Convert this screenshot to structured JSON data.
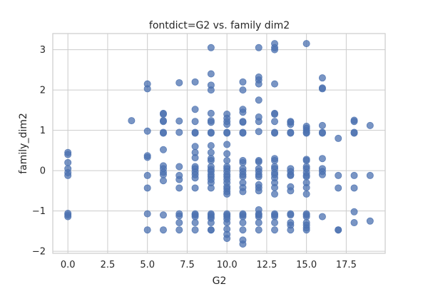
{
  "chart_data": {
    "type": "scatter",
    "title": "fontdict=G2 vs. family dim2",
    "xlabel": "G2",
    "ylabel": "family_dim2",
    "xlim": [
      -0.95,
      19.95
    ],
    "ylim": [
      -2.05,
      3.4
    ],
    "xticks": [
      0.0,
      2.5,
      5.0,
      7.5,
      10.0,
      12.5,
      15.0,
      17.5
    ],
    "xtick_labels": [
      "0.0",
      "2.5",
      "5.0",
      "7.5",
      "10.0",
      "12.5",
      "15.0",
      "17.5"
    ],
    "yticks": [
      -2,
      -1,
      0,
      1,
      2,
      3
    ],
    "ytick_labels": [
      "−2",
      "−1",
      "0",
      "1",
      "2",
      "3"
    ],
    "grid": true,
    "marker_color": "#4c72b0",
    "marker_alpha": 0.75,
    "points": [
      [
        0,
        0.45
      ],
      [
        0,
        0.4
      ],
      [
        0,
        0.2
      ],
      [
        0,
        0.05
      ],
      [
        0,
        -0.05
      ],
      [
        0,
        -0.12
      ],
      [
        0,
        -1.06
      ],
      [
        0,
        -1.1
      ],
      [
        0,
        -1.14
      ],
      [
        4,
        1.24
      ],
      [
        5,
        2.15
      ],
      [
        5,
        2.03
      ],
      [
        5,
        0.98
      ],
      [
        5,
        0.37
      ],
      [
        5,
        0.33
      ],
      [
        5,
        -0.12
      ],
      [
        5,
        -0.43
      ],
      [
        5,
        -1.07
      ],
      [
        5,
        -1.47
      ],
      [
        6,
        1.42
      ],
      [
        6,
        1.4
      ],
      [
        6,
        1.24
      ],
      [
        6,
        1.22
      ],
      [
        6,
        0.95
      ],
      [
        6,
        0.93
      ],
      [
        6,
        0.52
      ],
      [
        6,
        0.12
      ],
      [
        6,
        0.05
      ],
      [
        6,
        -0.04
      ],
      [
        6,
        -0.1
      ],
      [
        6,
        -0.25
      ],
      [
        6,
        -1.1
      ],
      [
        6,
        -1.47
      ],
      [
        7,
        2.18
      ],
      [
        7,
        1.23
      ],
      [
        7,
        0.95
      ],
      [
        7,
        0.1
      ],
      [
        7,
        -0.12
      ],
      [
        7,
        -0.22
      ],
      [
        7,
        -0.43
      ],
      [
        7,
        -1.07
      ],
      [
        7,
        -1.12
      ],
      [
        7,
        -1.29
      ],
      [
        7,
        -1.47
      ],
      [
        8,
        2.2
      ],
      [
        8,
        1.52
      ],
      [
        8,
        1.22
      ],
      [
        8,
        0.95
      ],
      [
        8,
        0.93
      ],
      [
        8,
        0.6
      ],
      [
        8,
        0.45
      ],
      [
        8,
        0.32
      ],
      [
        8,
        0.1
      ],
      [
        8,
        0.05
      ],
      [
        8,
        -0.03
      ],
      [
        8,
        -0.1
      ],
      [
        8,
        -0.18
      ],
      [
        8,
        -0.43
      ],
      [
        8,
        -1.07
      ],
      [
        8,
        -1.1
      ],
      [
        8,
        -1.14
      ],
      [
        8,
        -1.29
      ],
      [
        8,
        -1.47
      ],
      [
        9,
        3.05
      ],
      [
        9,
        2.4
      ],
      [
        9,
        2.12
      ],
      [
        9,
        2.0
      ],
      [
        9,
        1.42
      ],
      [
        9,
        1.24
      ],
      [
        9,
        1.2
      ],
      [
        9,
        0.95
      ],
      [
        9,
        0.93
      ],
      [
        9,
        0.62
      ],
      [
        9,
        0.45
      ],
      [
        9,
        0.3
      ],
      [
        9,
        0.25
      ],
      [
        9,
        0.1
      ],
      [
        9,
        0.03
      ],
      [
        9,
        -0.02
      ],
      [
        9,
        -0.1
      ],
      [
        9,
        -0.15
      ],
      [
        9,
        -0.22
      ],
      [
        9,
        -0.3
      ],
      [
        9,
        -0.43
      ],
      [
        9,
        -1.07
      ],
      [
        9,
        -1.1
      ],
      [
        9,
        -1.14
      ],
      [
        9,
        -1.18
      ],
      [
        9,
        -1.29
      ],
      [
        9,
        -1.47
      ],
      [
        9,
        -1.47
      ],
      [
        10,
        1.4
      ],
      [
        10,
        1.3
      ],
      [
        10,
        1.22
      ],
      [
        10,
        1.15
      ],
      [
        10,
        0.95
      ],
      [
        10,
        0.93
      ],
      [
        10,
        0.65
      ],
      [
        10,
        0.42
      ],
      [
        10,
        0.25
      ],
      [
        10,
        0.1
      ],
      [
        10,
        0.05
      ],
      [
        10,
        -0.02
      ],
      [
        10,
        -0.1
      ],
      [
        10,
        -0.15
      ],
      [
        10,
        -0.22
      ],
      [
        10,
        -0.3
      ],
      [
        10,
        -0.4
      ],
      [
        10,
        -0.45
      ],
      [
        10,
        -0.52
      ],
      [
        10,
        -0.58
      ],
      [
        10,
        -1.07
      ],
      [
        10,
        -1.1
      ],
      [
        10,
        -1.14
      ],
      [
        10,
        -1.2
      ],
      [
        10,
        -1.29
      ],
      [
        10,
        -1.45
      ],
      [
        10,
        -1.58
      ],
      [
        10,
        -1.68
      ],
      [
        11,
        2.2
      ],
      [
        11,
        2.0
      ],
      [
        11,
        1.52
      ],
      [
        11,
        1.45
      ],
      [
        11,
        1.22
      ],
      [
        11,
        1.2
      ],
      [
        11,
        0.95
      ],
      [
        11,
        0.93
      ],
      [
        11,
        0.25
      ],
      [
        11,
        0.2
      ],
      [
        11,
        0.05
      ],
      [
        11,
        -0.02
      ],
      [
        11,
        -0.1
      ],
      [
        11,
        -0.15
      ],
      [
        11,
        -0.3
      ],
      [
        11,
        -0.42
      ],
      [
        11,
        -0.52
      ],
      [
        11,
        -1.07
      ],
      [
        11,
        -1.1
      ],
      [
        11,
        -1.14
      ],
      [
        11,
        -1.29
      ],
      [
        11,
        -1.47
      ],
      [
        11,
        -1.72
      ],
      [
        11,
        -1.82
      ],
      [
        12,
        3.05
      ],
      [
        12,
        2.32
      ],
      [
        12,
        2.25
      ],
      [
        12,
        2.15
      ],
      [
        12,
        1.75
      ],
      [
        12,
        1.33
      ],
      [
        12,
        1.22
      ],
      [
        12,
        0.97
      ],
      [
        12,
        0.25
      ],
      [
        12,
        0.22
      ],
      [
        12,
        0.05
      ],
      [
        12,
        -0.02
      ],
      [
        12,
        -0.1
      ],
      [
        12,
        -0.15
      ],
      [
        12,
        -0.35
      ],
      [
        12,
        -0.42
      ],
      [
        12,
        -0.5
      ],
      [
        12,
        -0.97
      ],
      [
        12,
        -1.07
      ],
      [
        12,
        -1.1
      ],
      [
        12,
        -1.14
      ],
      [
        12,
        -1.29
      ],
      [
        12,
        -1.47
      ],
      [
        13,
        3.15
      ],
      [
        13,
        3.05
      ],
      [
        13,
        3.0
      ],
      [
        13,
        2.15
      ],
      [
        13,
        1.42
      ],
      [
        13,
        1.4
      ],
      [
        13,
        1.22
      ],
      [
        13,
        0.95
      ],
      [
        13,
        0.93
      ],
      [
        13,
        0.3
      ],
      [
        13,
        0.25
      ],
      [
        13,
        0.1
      ],
      [
        13,
        0.05
      ],
      [
        13,
        -0.05
      ],
      [
        13,
        -0.1
      ],
      [
        13,
        -0.18
      ],
      [
        13,
        -0.3
      ],
      [
        13,
        -0.42
      ],
      [
        13,
        -0.58
      ],
      [
        13,
        -1.07
      ],
      [
        13,
        -1.1
      ],
      [
        13,
        -1.14
      ],
      [
        13,
        -1.29
      ],
      [
        13,
        -1.47
      ],
      [
        14,
        1.22
      ],
      [
        14,
        1.2
      ],
      [
        14,
        1.15
      ],
      [
        14,
        0.95
      ],
      [
        14,
        0.93
      ],
      [
        14,
        0.05
      ],
      [
        14,
        -0.02
      ],
      [
        14,
        -0.1
      ],
      [
        14,
        -0.12
      ],
      [
        14,
        -0.4
      ],
      [
        14,
        -0.5
      ],
      [
        14,
        -1.07
      ],
      [
        14,
        -1.1
      ],
      [
        14,
        -1.29
      ],
      [
        14,
        -1.35
      ],
      [
        14,
        -1.47
      ],
      [
        15,
        3.15
      ],
      [
        15,
        1.1
      ],
      [
        15,
        1.05
      ],
      [
        15,
        1.0
      ],
      [
        15,
        0.95
      ],
      [
        15,
        0.93
      ],
      [
        15,
        0.28
      ],
      [
        15,
        0.25
      ],
      [
        15,
        0.1
      ],
      [
        15,
        0.05
      ],
      [
        15,
        -0.05
      ],
      [
        15,
        -0.12
      ],
      [
        15,
        -0.15
      ],
      [
        15,
        -0.3
      ],
      [
        15,
        -0.42
      ],
      [
        15,
        -0.58
      ],
      [
        15,
        -1.07
      ],
      [
        15,
        -1.1
      ],
      [
        15,
        -1.14
      ],
      [
        15,
        -1.29
      ],
      [
        15,
        -1.35
      ],
      [
        15,
        -1.42
      ],
      [
        15,
        -1.47
      ],
      [
        16,
        2.3
      ],
      [
        16,
        2.05
      ],
      [
        16,
        2.03
      ],
      [
        16,
        1.12
      ],
      [
        16,
        0.95
      ],
      [
        16,
        0.93
      ],
      [
        16,
        0.3
      ],
      [
        16,
        0.05
      ],
      [
        16,
        -0.02
      ],
      [
        16,
        -0.1
      ],
      [
        16,
        -1.14
      ],
      [
        17,
        0.8
      ],
      [
        17,
        -0.12
      ],
      [
        17,
        -0.43
      ],
      [
        17,
        -1.47
      ],
      [
        17,
        -1.47
      ],
      [
        18,
        1.25
      ],
      [
        18,
        1.22
      ],
      [
        18,
        0.95
      ],
      [
        18,
        0.93
      ],
      [
        18,
        -0.12
      ],
      [
        18,
        -0.43
      ],
      [
        18,
        -1.02
      ],
      [
        18,
        -1.29
      ],
      [
        19,
        1.12
      ],
      [
        19,
        -0.12
      ],
      [
        19,
        -1.25
      ]
    ]
  }
}
